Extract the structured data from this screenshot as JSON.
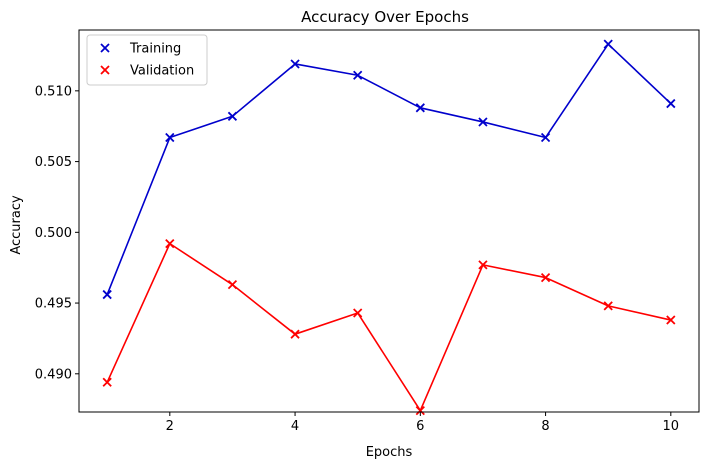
{
  "chart_data": {
    "type": "line",
    "title": "Accuracy Over Epochs",
    "xlabel": "Epochs",
    "ylabel": "Accuracy",
    "x": [
      1,
      2,
      3,
      4,
      5,
      6,
      7,
      8,
      9,
      10
    ],
    "xlim": [
      0.55,
      10.45
    ],
    "ylim": [
      0.4873,
      0.5143
    ],
    "xticks": [
      2,
      4,
      6,
      8,
      10
    ],
    "xtick_labels": [
      "2",
      "4",
      "6",
      "8",
      "10"
    ],
    "yticks": [
      0.49,
      0.495,
      0.5,
      0.505,
      0.51
    ],
    "ytick_labels": [
      "0.490",
      "0.495",
      "0.500",
      "0.505",
      "0.510"
    ],
    "grid": false,
    "legend_position": "top-left",
    "marker": "x",
    "series": [
      {
        "name": "Training",
        "color": "#0000cc",
        "values": [
          0.4956,
          0.5067,
          0.5082,
          0.5119,
          0.5111,
          0.5088,
          0.5078,
          0.5067,
          0.5133,
          0.5091
        ]
      },
      {
        "name": "Validation",
        "color": "#ff0000",
        "values": [
          0.4894,
          0.4992,
          0.4963,
          0.4928,
          0.4943,
          0.4874,
          0.4977,
          0.4968,
          0.4948,
          0.4938
        ]
      }
    ]
  }
}
